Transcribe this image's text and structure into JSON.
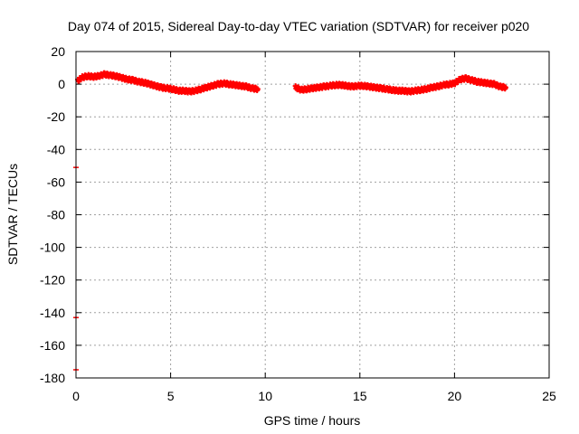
{
  "chart_data": {
    "type": "scatter",
    "title": "Day 074 of 2015, Sidereal Day-to-day VTEC variation (SDTVAR) for receiver p020",
    "xlabel": "GPS time / hours",
    "ylabel": "SDTVAR / TECUs",
    "xlim": [
      0,
      25
    ],
    "ylim": [
      -180,
      20
    ],
    "xticks": [
      0,
      5,
      10,
      15,
      20,
      25
    ],
    "xtick_labels": [
      "0",
      "5",
      "10",
      "15",
      "20",
      "25"
    ],
    "yticks": [
      20,
      0,
      -20,
      -40,
      -60,
      -80,
      -100,
      -120,
      -140,
      -160,
      -180
    ],
    "ytick_labels": [
      "20",
      "0",
      "-20",
      "-40",
      "-60",
      "-80",
      "-100",
      "-120",
      "-140",
      "-160",
      "-180"
    ],
    "grid": true,
    "marker_color": "#ff0000",
    "series": [
      {
        "name": "SDTVAR p020",
        "segments": [
          {
            "x": [
              0.1,
              0.3,
              0.6,
              0.9,
              1.2,
              1.5,
              1.8,
              2.1,
              2.4,
              2.7,
              3.0,
              3.3,
              3.6,
              3.9,
              4.2,
              4.5,
              4.8,
              5.1,
              5.4,
              5.7,
              6.0,
              6.3,
              6.6,
              6.9,
              7.2,
              7.5,
              7.8,
              8.1,
              8.4,
              8.7,
              9.0,
              9.3,
              9.6
            ],
            "y": [
              2,
              4,
              5,
              4.5,
              5,
              6,
              5.5,
              5,
              4,
              3,
              2.5,
              1.5,
              1,
              0,
              -1,
              -2,
              -2.5,
              -3,
              -4,
              -4,
              -4.5,
              -4,
              -3,
              -2,
              -1,
              0,
              0.5,
              0,
              -0.5,
              -1,
              -1.5,
              -2.5,
              -3
            ]
          },
          {
            "x": [
              11.6,
              11.9,
              12.2,
              12.5,
              12.8,
              13.1,
              13.4,
              13.7,
              14.0,
              14.3,
              14.6,
              14.9,
              15.2,
              15.5,
              15.8,
              16.1,
              16.4,
              16.7,
              17.0,
              17.3,
              17.6,
              17.9,
              18.2,
              18.5,
              18.8,
              19.1,
              19.4,
              19.7,
              20.0,
              20.3,
              20.6,
              20.9,
              21.2,
              21.5,
              21.8,
              22.1,
              22.4,
              22.7
            ],
            "y": [
              -2,
              -3.5,
              -3,
              -2.5,
              -2,
              -1.5,
              -1,
              -0.5,
              -0.5,
              -1,
              -1.5,
              -1,
              -1,
              -1.5,
              -2,
              -2.5,
              -3,
              -3.5,
              -4,
              -4,
              -4.5,
              -4,
              -3.5,
              -3,
              -2,
              -1.5,
              -0.5,
              0,
              0.5,
              3,
              3.5,
              2.5,
              1.5,
              1,
              0.5,
              0,
              -1.5,
              -2
            ]
          }
        ],
        "outliers": [
          {
            "x": 0.0,
            "y": -51
          },
          {
            "x": 0.0,
            "y": -143
          },
          {
            "x": 0.0,
            "y": -175
          }
        ]
      }
    ]
  }
}
